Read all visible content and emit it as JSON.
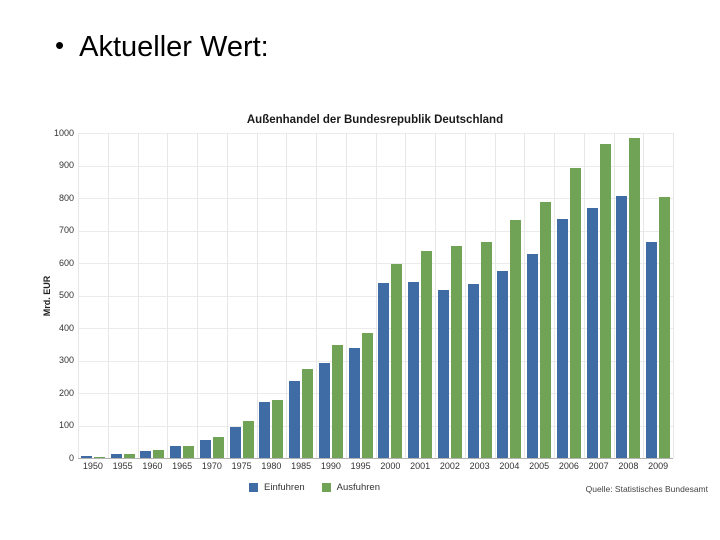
{
  "slide": {
    "bullet": "•",
    "title": "Aktueller Wert:"
  },
  "chart_data": {
    "type": "bar",
    "title": "Außenhandel der Bundesrepublik Deutschland",
    "xlabel": "",
    "ylabel": "Mrd. EUR",
    "ylim": [
      0,
      1000
    ],
    "yticks": [
      0,
      100,
      200,
      300,
      400,
      500,
      600,
      700,
      800,
      900,
      1000
    ],
    "grid": true,
    "legend_position": "bottom",
    "source": "Quelle: Statistisches Bundesamt",
    "categories": [
      "1950",
      "1955",
      "1960",
      "1965",
      "1970",
      "1975",
      "1980",
      "1985",
      "1990",
      "1995",
      "2000",
      "2001",
      "2002",
      "2003",
      "2004",
      "2005",
      "2006",
      "2007",
      "2008",
      "2009"
    ],
    "series": [
      {
        "name": "Einfuhren",
        "color": "#3f6ca5",
        "values": [
          5.8,
          12.5,
          21.8,
          35.8,
          56.2,
          94.2,
          172.7,
          235.6,
          293.2,
          339.6,
          538.3,
          542.8,
          518.5,
          534.5,
          575.4,
          628.1,
          734.0,
          769.9,
          805.8,
          664.6
        ]
      },
      {
        "name": "Ausfuhren",
        "color": "#70a356",
        "values": [
          4.3,
          13.1,
          24.5,
          36.6,
          64.1,
          112.6,
          179.8,
          274.6,
          348.1,
          383.2,
          597.4,
          638.3,
          651.3,
          664.5,
          731.5,
          786.3,
          893.0,
          965.2,
          984.1,
          803.3
        ]
      }
    ]
  }
}
